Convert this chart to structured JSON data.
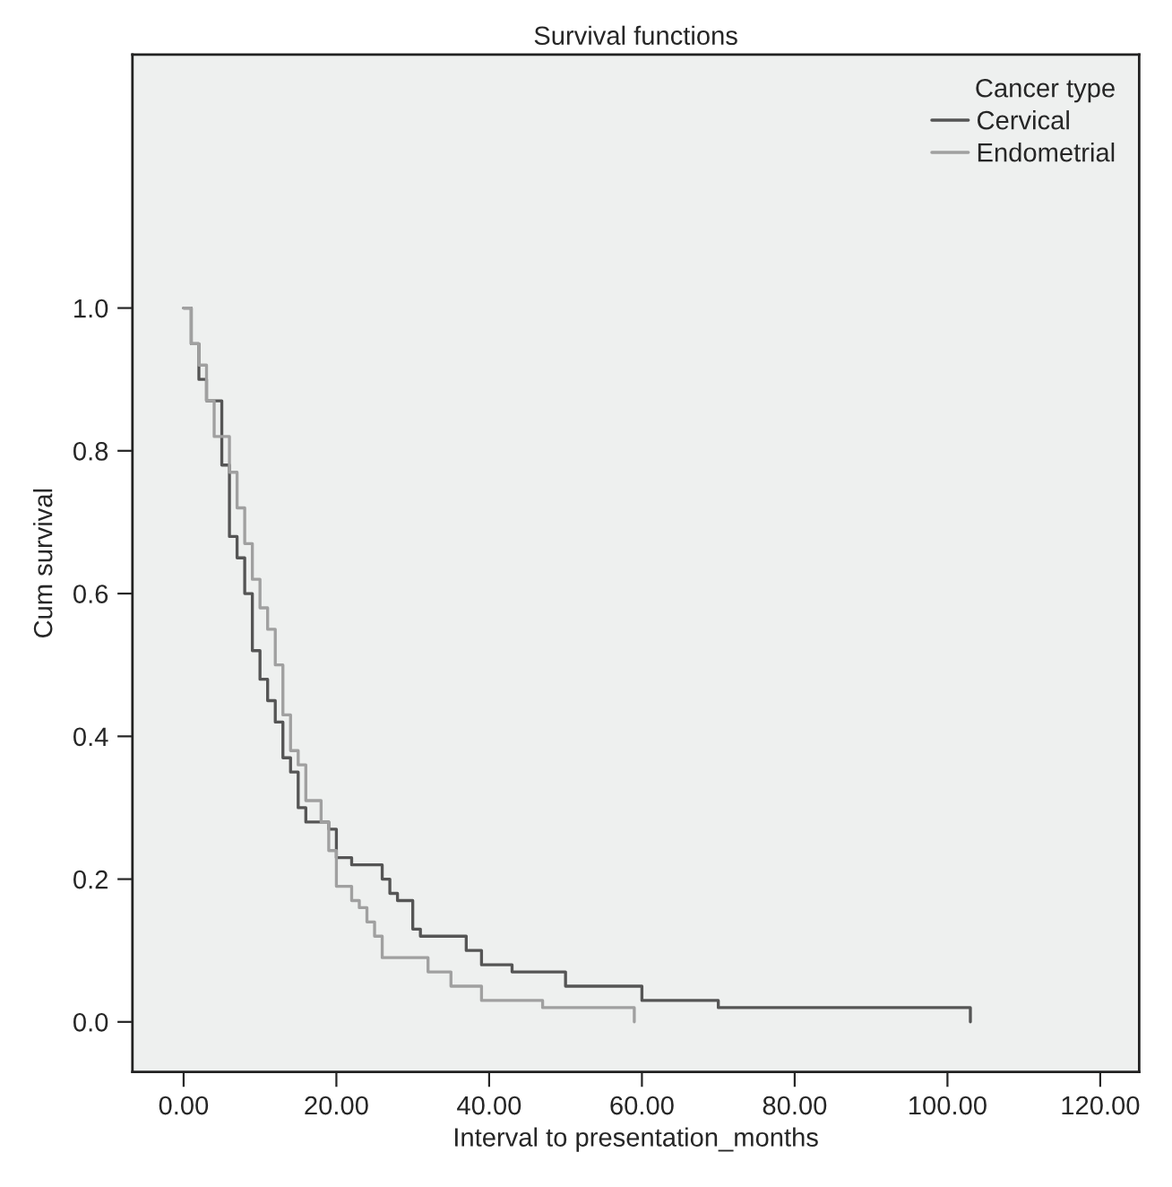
{
  "chart_data": {
    "type": "step",
    "title": "Survival functions",
    "xlabel": "Interval to presentation_months",
    "ylabel": "Cum survival",
    "legend_title": "Cancer type",
    "legend": "top right",
    "grid": false,
    "xlim": [
      -6.7,
      125.1
    ],
    "ylim": [
      -0.07,
      1.355
    ],
    "xticks": [
      {
        "value": 0,
        "label": "0.00"
      },
      {
        "value": 20,
        "label": "20.00"
      },
      {
        "value": 40,
        "label": "40.00"
      },
      {
        "value": 60,
        "label": "60.00"
      },
      {
        "value": 80,
        "label": "80.00"
      },
      {
        "value": 100,
        "label": "100.00"
      },
      {
        "value": 120,
        "label": "120.00"
      }
    ],
    "yticks": [
      {
        "value": 0,
        "label": "0.0"
      },
      {
        "value": 0.2,
        "label": "0.2"
      },
      {
        "value": 0.4,
        "label": "0.4"
      },
      {
        "value": 0.6,
        "label": "0.6"
      },
      {
        "value": 0.8,
        "label": "0.8"
      },
      {
        "value": 1.0,
        "label": "1.0"
      }
    ],
    "series": [
      {
        "name": "Cervical",
        "color": "#555555",
        "x": [
          0,
          1,
          2,
          3,
          5,
          6,
          7,
          8,
          9,
          10,
          11,
          12,
          13,
          14,
          15,
          16,
          19,
          20,
          22,
          26,
          27,
          28,
          30,
          31,
          37,
          39,
          43,
          50,
          60,
          70,
          103
        ],
        "values": [
          1.0,
          0.95,
          0.9,
          0.87,
          0.78,
          0.68,
          0.65,
          0.6,
          0.52,
          0.48,
          0.45,
          0.42,
          0.37,
          0.35,
          0.3,
          0.28,
          0.27,
          0.23,
          0.22,
          0.2,
          0.18,
          0.17,
          0.13,
          0.12,
          0.1,
          0.08,
          0.07,
          0.05,
          0.03,
          0.02,
          0.0
        ]
      },
      {
        "name": "Endometrial",
        "color": "#a0a0a0",
        "x": [
          0,
          1,
          2,
          3,
          4,
          6,
          7,
          8,
          9,
          10,
          11,
          12,
          13,
          14,
          15,
          16,
          18,
          19,
          20,
          22,
          23,
          24,
          25,
          26,
          32,
          35,
          39,
          47,
          59
        ],
        "values": [
          1.0,
          0.95,
          0.92,
          0.87,
          0.82,
          0.77,
          0.72,
          0.67,
          0.62,
          0.58,
          0.55,
          0.5,
          0.43,
          0.38,
          0.36,
          0.31,
          0.28,
          0.24,
          0.19,
          0.17,
          0.16,
          0.14,
          0.12,
          0.09,
          0.07,
          0.05,
          0.03,
          0.02,
          0.0
        ]
      }
    ]
  }
}
